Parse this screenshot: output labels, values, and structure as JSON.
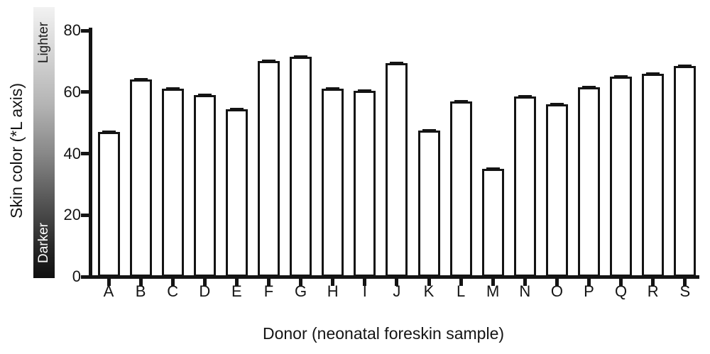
{
  "chart_data": {
    "type": "bar",
    "title": "",
    "categories": [
      "A",
      "B",
      "C",
      "D",
      "E",
      "F",
      "G",
      "H",
      "I",
      "J",
      "K",
      "L",
      "M",
      "N",
      "O",
      "P",
      "Q",
      "R",
      "S"
    ],
    "values": [
      47,
      64,
      61,
      59,
      54.5,
      70,
      71.5,
      61,
      60.5,
      69.5,
      47.5,
      57,
      35,
      58.5,
      56,
      61.5,
      65,
      66,
      68.5
    ],
    "xlabel": "Donor (neonatal foreskin sample)",
    "ylabel": "Skin color (*L axis)",
    "ylim": [
      0,
      80
    ],
    "yticks": [
      0,
      20,
      40,
      60,
      80
    ],
    "grid": false,
    "legend_position": "none",
    "bar_fill": "#ffffff",
    "bar_stroke": "#141414",
    "gradient_legend": {
      "top_label": "Lighter",
      "bottom_label": "Darker",
      "top_color": "#f2f2f2",
      "bottom_color": "#0f0f0f"
    }
  }
}
